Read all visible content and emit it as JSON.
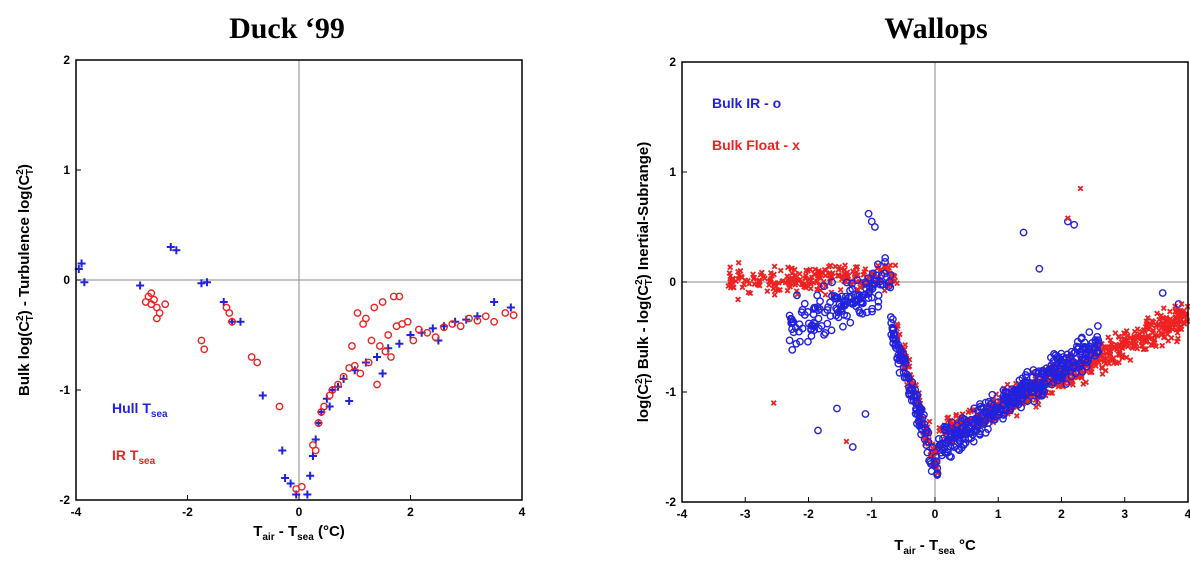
{
  "colors": {
    "blue": "#2222dd",
    "red": "#ee2222",
    "axis": "#000000",
    "zero_line": "#888888"
  },
  "chart_data": [
    {
      "type": "scatter",
      "title": "Duck ‘99",
      "xlim": [
        -4,
        4
      ],
      "ylim": [
        -2,
        2
      ],
      "xticks": [
        "-4",
        "-2",
        "0",
        "2",
        "4"
      ],
      "yticks": [
        "-2",
        "-1",
        "0",
        "1",
        "2"
      ],
      "xlabel": {
        "a": "T",
        "a_sub": "air",
        "b": " - T",
        "b_sub": "sea",
        "c": " (°C)"
      },
      "ylabel": {
        "a": "Bulk log(C",
        "a_sup": "2",
        "a_sub": "T",
        "b": ") - Turbulence log(C",
        "b_sup": "2",
        "b_sub": "T",
        "c": ")"
      },
      "legend": [
        {
          "text": "Hull T",
          "sub": "sea",
          "color": "#2222dd"
        },
        {
          "text": "IR T",
          "sub": "sea",
          "color": "#ee2222"
        }
      ],
      "grid": false,
      "zero_lines": true,
      "series": [
        {
          "marker": "plus",
          "color": "#2222dd",
          "x": [
            -3.95,
            -3.9,
            -3.85,
            -2.85,
            -2.3,
            -2.2,
            -1.75,
            -1.65,
            -1.35,
            -1.2,
            -1.05,
            -0.65,
            -0.3,
            -0.25,
            -0.15,
            -0.05,
            0.15,
            0.2,
            0.25,
            0.3,
            0.4,
            0.5,
            0.6,
            0.7,
            0.8,
            1.0,
            1.2,
            1.4,
            1.6,
            1.8,
            2.0,
            2.2,
            2.4,
            2.6,
            2.8,
            3.0,
            3.2,
            3.5,
            3.8,
            0.9,
            1.5,
            2.5,
            0.35,
            0.55
          ],
          "y": [
            0.1,
            0.15,
            -0.02,
            -0.05,
            0.3,
            0.27,
            -0.03,
            -0.02,
            -0.2,
            -0.38,
            -0.38,
            -1.05,
            -1.55,
            -1.8,
            -1.85,
            -1.95,
            -1.95,
            -1.78,
            -1.6,
            -1.45,
            -1.2,
            -1.08,
            -1.0,
            -0.97,
            -0.9,
            -0.82,
            -0.75,
            -0.7,
            -0.62,
            -0.58,
            -0.5,
            -0.48,
            -0.44,
            -0.42,
            -0.38,
            -0.36,
            -0.33,
            -0.2,
            -0.25,
            -1.1,
            -0.85,
            -0.55,
            -1.3,
            -1.15
          ]
        },
        {
          "marker": "circle",
          "color": "#ee2222",
          "x": [
            -2.75,
            -2.7,
            -2.65,
            -2.6,
            -2.55,
            -2.5,
            -2.65,
            -2.4,
            -2.55,
            -1.75,
            -1.7,
            -1.3,
            -1.25,
            -1.2,
            -0.85,
            -0.75,
            -0.35,
            -0.05,
            0.05,
            0.25,
            0.3,
            0.35,
            0.4,
            0.45,
            0.55,
            0.6,
            0.7,
            0.8,
            0.9,
            1.0,
            1.05,
            1.15,
            1.2,
            1.3,
            1.35,
            1.45,
            1.5,
            1.6,
            1.7,
            1.75,
            1.85,
            1.95,
            2.05,
            2.15,
            2.3,
            2.45,
            2.6,
            2.75,
            2.9,
            3.05,
            3.2,
            3.35,
            3.5,
            3.7,
            3.85,
            1.25,
            1.55,
            1.4,
            1.1,
            0.95,
            1.8,
            1.65
          ],
          "y": [
            -0.2,
            -0.15,
            -0.12,
            -0.18,
            -0.25,
            -0.3,
            -0.22,
            -0.22,
            -0.35,
            -0.55,
            -0.63,
            -0.25,
            -0.3,
            -0.38,
            -0.7,
            -0.75,
            -1.15,
            -1.9,
            -1.88,
            -1.5,
            -1.55,
            -1.3,
            -1.2,
            -1.15,
            -1.05,
            -1.0,
            -0.95,
            -0.88,
            -0.8,
            -0.78,
            -0.3,
            -0.4,
            -0.35,
            -0.55,
            -0.25,
            -0.6,
            -0.2,
            -0.5,
            -0.15,
            -0.42,
            -0.4,
            -0.38,
            -0.55,
            -0.45,
            -0.48,
            -0.52,
            -0.43,
            -0.4,
            -0.42,
            -0.35,
            -0.37,
            -0.33,
            -0.38,
            -0.3,
            -0.32,
            -0.75,
            -0.65,
            -0.95,
            -0.85,
            -0.6,
            -0.15,
            -0.7
          ]
        }
      ]
    },
    {
      "type": "scatter",
      "title": "Wallops",
      "xlim": [
        -4,
        4
      ],
      "ylim": [
        -2,
        2
      ],
      "xticks": [
        "-4",
        "-3",
        "-2",
        "-1",
        "0",
        "1",
        "2",
        "3",
        "4"
      ],
      "yticks": [
        "-2",
        "-1",
        "0",
        "1",
        "2"
      ],
      "xlabel": {
        "a": "T",
        "a_sub": "air",
        "b": " - T",
        "b_sub": "sea",
        "c": " °C"
      },
      "ylabel": {
        "a": "log(C",
        "a_sup": "2",
        "a_sub": "T",
        "b": ") Bulk - log(C",
        "b_sup": "2",
        "b_sub": "T",
        "c": ") Inertial-Subrange)"
      },
      "legend": [
        {
          "text": "Bulk IR - o",
          "sub": "",
          "color": "#2222dd"
        },
        {
          "text": "Bulk Float - x",
          "sub": "",
          "color": "#ee2222"
        }
      ],
      "grid": false,
      "zero_lines": true,
      "clusters": [
        {
          "marker": "x",
          "color": "#ee2222",
          "seed": 11,
          "n": 230,
          "xr": [
            -3.3,
            -0.6
          ],
          "yc": [
            0.0,
            0.05
          ],
          "ys": 0.18,
          "slope": 0.0
        },
        {
          "marker": "x",
          "color": "#ee2222",
          "seed": 12,
          "n": 120,
          "xr": [
            -0.6,
            0.05
          ],
          "yc": [
            -0.5,
            -1.7
          ],
          "ys": 0.22,
          "slope": 0.0
        },
        {
          "marker": "x",
          "color": "#ee2222",
          "seed": 13,
          "n": 650,
          "xr": [
            0.05,
            4.0
          ],
          "yc": [
            -1.4,
            -0.3
          ],
          "ys": 0.2,
          "slope": 0.0
        },
        {
          "marker": "circle",
          "color": "#2222dd",
          "seed": 21,
          "n": 150,
          "xr": [
            -2.3,
            -0.7
          ],
          "yc": [
            -0.4,
            0.0
          ],
          "ys": 0.3,
          "slope": 0.0
        },
        {
          "marker": "circle",
          "color": "#2222dd",
          "seed": 22,
          "n": 110,
          "xr": [
            -0.7,
            0.05
          ],
          "yc": [
            -0.4,
            -1.75
          ],
          "ys": 0.22,
          "slope": 0.0
        },
        {
          "marker": "circle",
          "color": "#2222dd",
          "seed": 23,
          "n": 380,
          "xr": [
            0.05,
            2.6
          ],
          "yc": [
            -1.5,
            -0.55
          ],
          "ys": 0.22,
          "slope": 0.0
        }
      ],
      "extra_points": [
        {
          "marker": "circle",
          "color": "#2222dd",
          "x": [
            -1.05,
            -1.0,
            -0.95,
            1.4,
            1.65,
            2.1,
            2.2,
            3.6,
            3.85,
            -1.3,
            -1.55,
            -1.85,
            -1.1
          ],
          "y": [
            0.62,
            0.55,
            0.5,
            0.45,
            0.12,
            0.55,
            0.52,
            -0.1,
            -0.2,
            -1.5,
            -1.15,
            -1.35,
            -1.2
          ]
        },
        {
          "marker": "x",
          "color": "#ee2222",
          "x": [
            2.3,
            2.1,
            -2.55,
            -1.4,
            3.9,
            3.95
          ],
          "y": [
            0.85,
            0.58,
            -1.1,
            -1.45,
            -0.2,
            -0.3
          ]
        }
      ]
    }
  ]
}
